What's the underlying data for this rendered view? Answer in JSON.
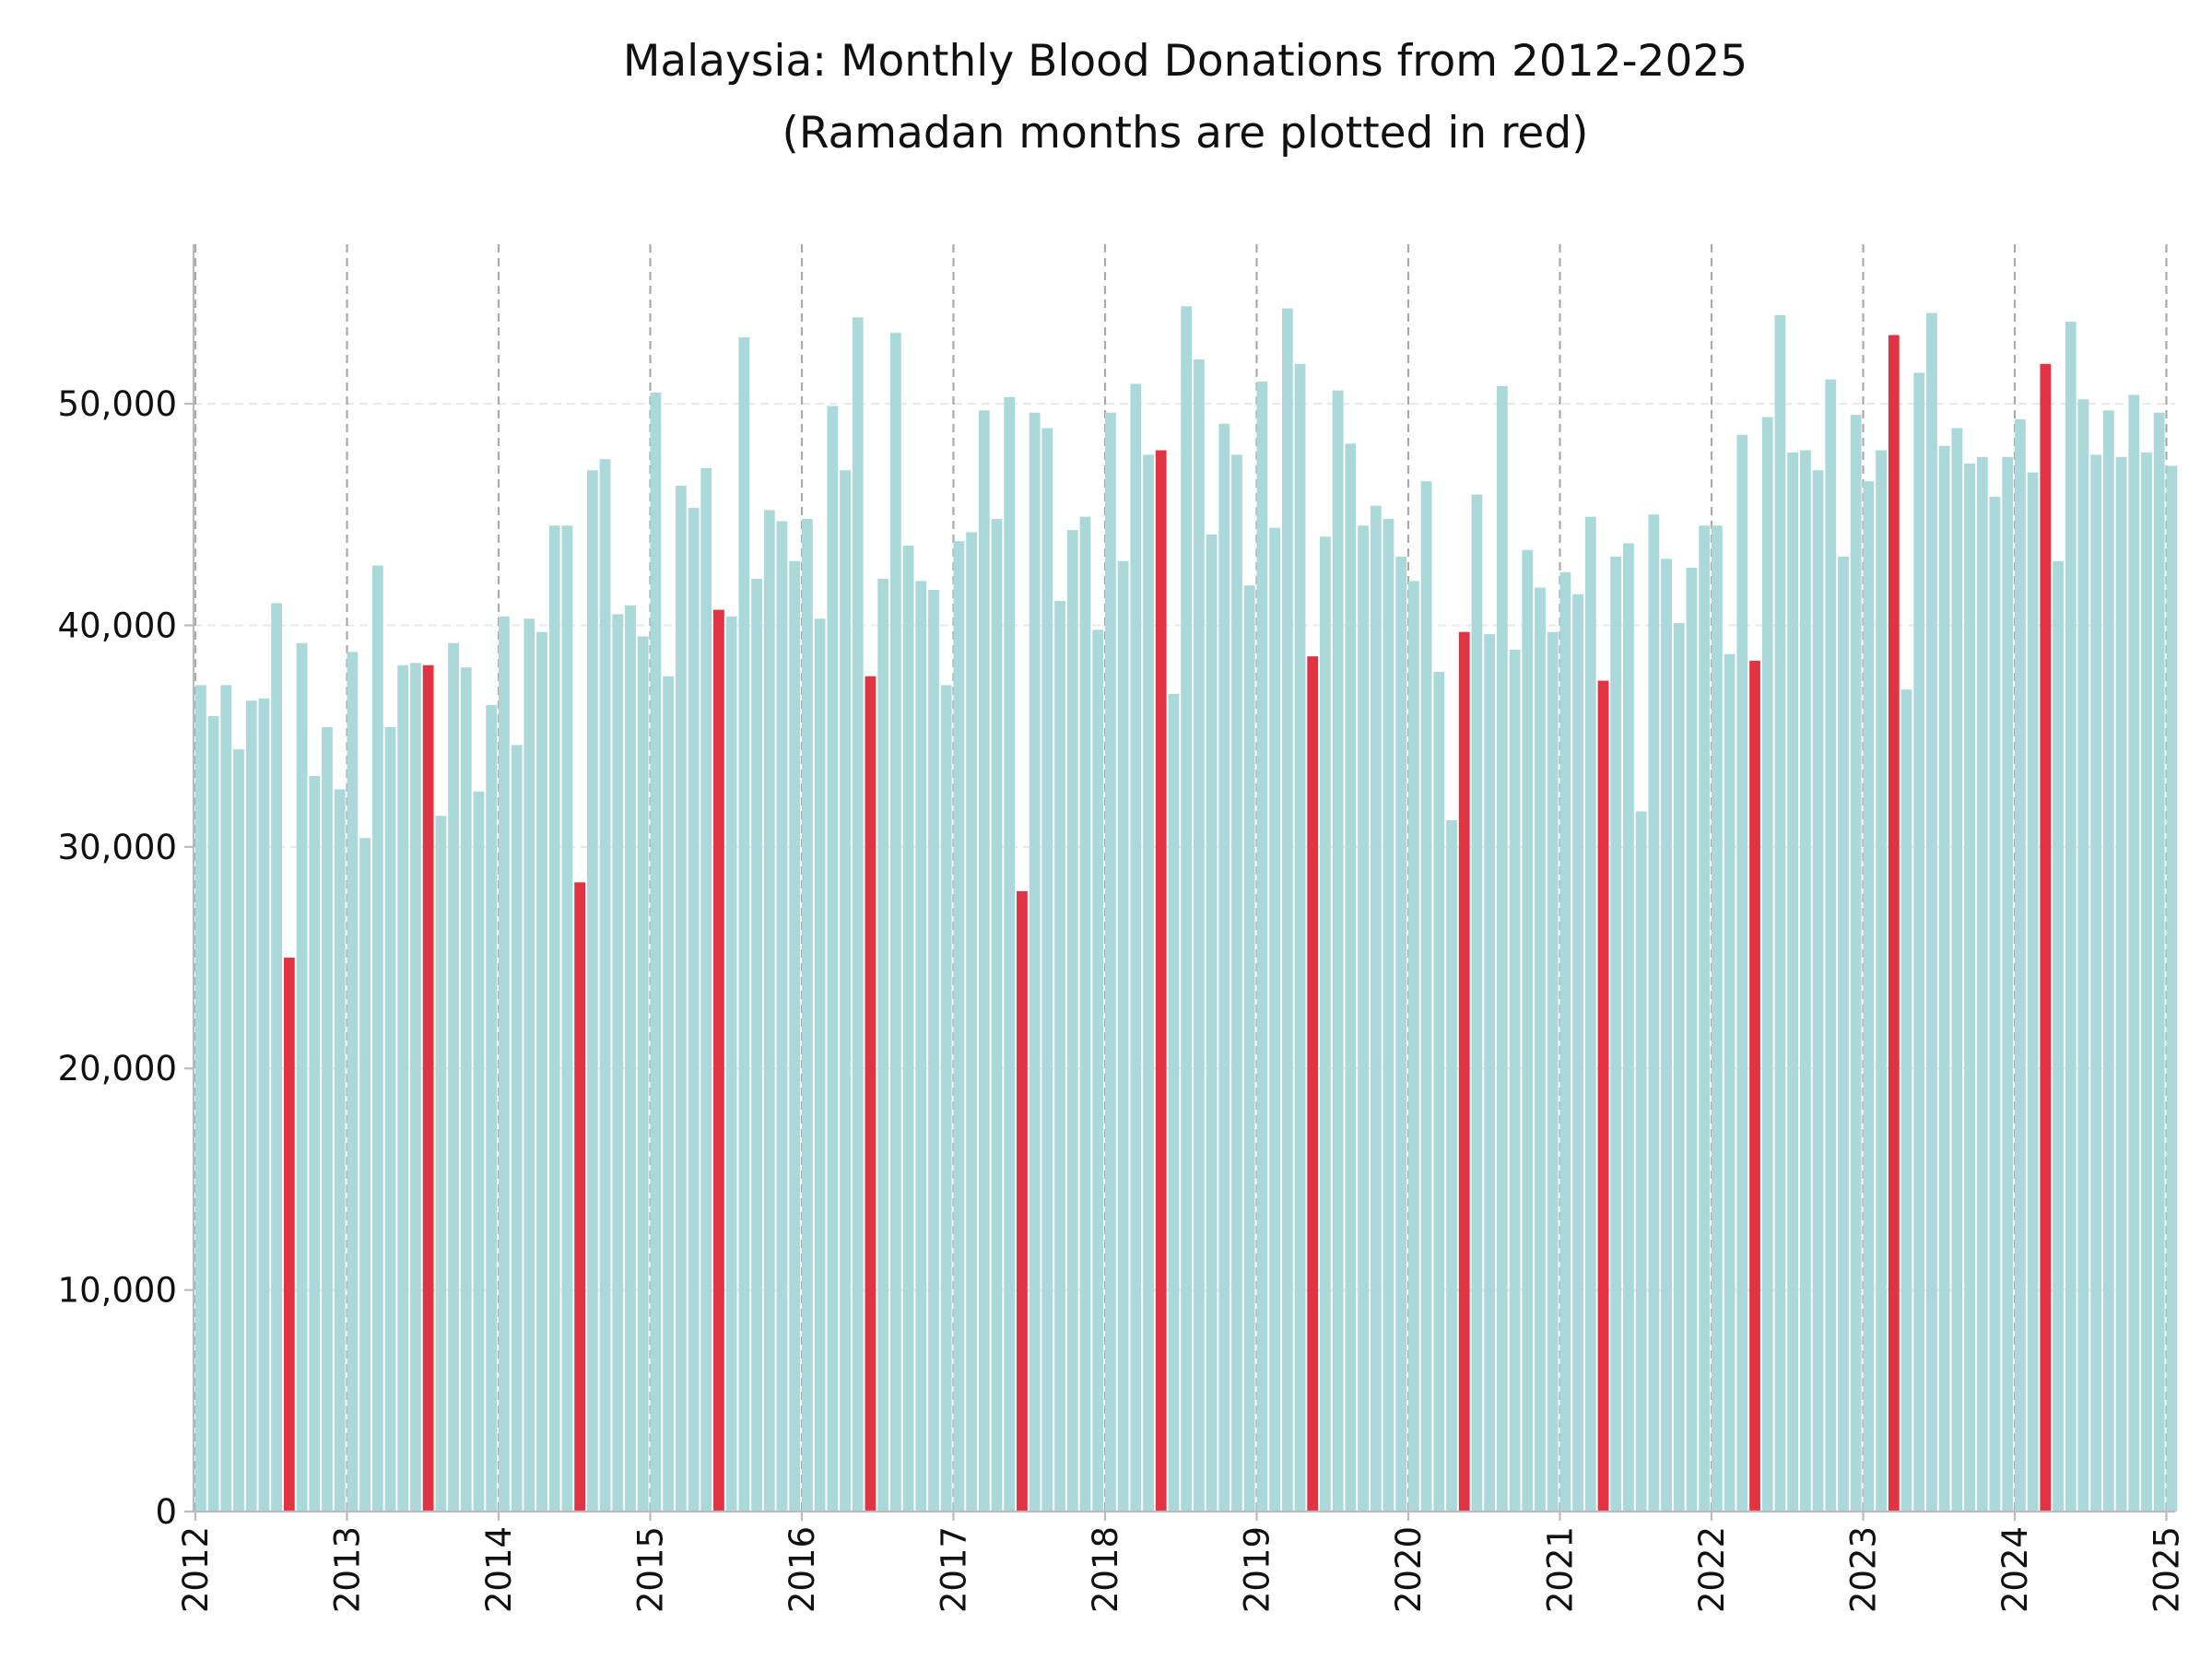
{
  "chart_data": {
    "type": "bar",
    "title": "Malaysia: Monthly Blood Donations from 2012-2025",
    "subtitle": "(Ramadan months are plotted in red)",
    "xlabel": "",
    "ylabel": "",
    "ylim": [
      0,
      57200
    ],
    "x_ticks": [
      "2012",
      "2013",
      "2014",
      "2015",
      "2016",
      "2017",
      "2018",
      "2019",
      "2020",
      "2021",
      "2022",
      "2023",
      "2024",
      "2025"
    ],
    "y_ticks": [
      0,
      10000,
      20000,
      30000,
      40000,
      50000
    ],
    "y_tick_labels": [
      "0",
      "10,000",
      "20,000",
      "30,000",
      "40,000",
      "50,000"
    ],
    "grid": {
      "horizontal": "light dashed",
      "vertical": "dashed at year boundaries"
    },
    "colors": {
      "normal": "#abd9d9",
      "ramadan": "#e03444"
    },
    "start_month": "2012-01",
    "values": [
      37300,
      35900,
      37300,
      34400,
      36600,
      36700,
      41000,
      25000,
      39200,
      33200,
      35400,
      32600,
      38800,
      30400,
      42700,
      35400,
      38200,
      38300,
      38200,
      31400,
      39200,
      38100,
      32500,
      36400,
      40400,
      34600,
      40300,
      39700,
      44500,
      44500,
      28400,
      47000,
      47500,
      40500,
      40900,
      39500,
      50500,
      37700,
      46300,
      45300,
      47100,
      40700,
      40400,
      53000,
      42100,
      45200,
      44700,
      42900,
      44800,
      40300,
      49900,
      47000,
      53900,
      37700,
      42100,
      53200,
      43600,
      42000,
      41600,
      37300,
      43800,
      44200,
      49700,
      44800,
      50300,
      28000,
      49600,
      48900,
      41100,
      44300,
      44900,
      39800,
      49600,
      42900,
      50900,
      47700,
      47900,
      36900,
      54400,
      52000,
      44100,
      49100,
      47700,
      41800,
      51000,
      44400,
      54300,
      51800,
      38600,
      44000,
      50600,
      48200,
      44500,
      45400,
      44800,
      43100,
      42000,
      46500,
      37900,
      31200,
      39700,
      45900,
      39600,
      50800,
      38900,
      43400,
      41700,
      39700,
      42400,
      41400,
      44900,
      37500,
      43100,
      43700,
      31600,
      45000,
      43000,
      40100,
      42600,
      44500,
      44500,
      38700,
      48600,
      38400,
      49400,
      54000,
      47800,
      47900,
      47000,
      51100,
      43100,
      49500,
      46500,
      47900,
      53100,
      37100,
      51400,
      54100,
      48100,
      48900,
      47300,
      47600,
      45800,
      47600,
      49300,
      46900,
      51800,
      42900,
      53700,
      50200,
      47700,
      49700,
      47600,
      50400,
      47800,
      49600,
      47200
    ],
    "ramadan_months": [
      "2012-08",
      "2013-07",
      "2014-07",
      "2015-06",
      "2016-06",
      "2017-06",
      "2018-05",
      "2019-05",
      "2020-05",
      "2021-04",
      "2022-04",
      "2023-03",
      "2024-03"
    ]
  }
}
